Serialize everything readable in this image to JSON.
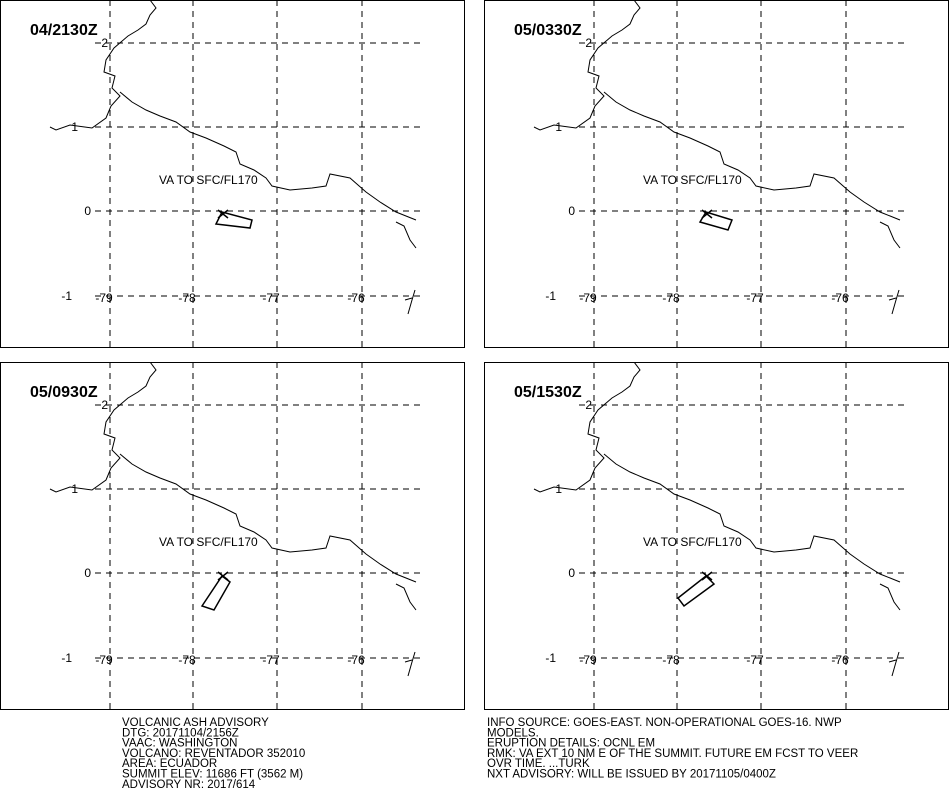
{
  "panels": [
    {
      "title": "04/2130Z",
      "va_label": "VA TO SFC/FL170"
    },
    {
      "title": "05/0330Z",
      "va_label": "VA TO SFC/FL170"
    },
    {
      "title": "05/0930Z",
      "va_label": "VA TO SFC/FL170"
    },
    {
      "title": "05/1530Z",
      "va_label": "VA TO SFC/FL170"
    }
  ],
  "grid": {
    "lat_labels": [
      2,
      1,
      0,
      -1
    ],
    "lon_labels": [
      -79,
      -78,
      -77,
      -76
    ]
  },
  "advisory": {
    "left": [
      "VOLCANIC ASH ADVISORY",
      "DTG: 20171104/2156Z",
      "VAAC: WASHINGTON",
      "VOLCANO: REVENTADOR 352010",
      "AREA: ECUADOR",
      "SUMMIT ELEV: 11686 FT (3562 M)",
      "ADVISORY NR: 2017/614"
    ],
    "right": [
      "INFO SOURCE: GOES-EAST. NON-OPERATIONAL GOES-16. NWP",
      "MODELS.",
      "ERUPTION DETAILS: OCNL EM",
      "RMK: VA EXT 10 NM E OF THE SUMMIT. FUTURE EM FCST TO VEER",
      "OVR TIME. ...TURK",
      "NXT ADVISORY: WILL BE ISSUED BY 20171105/0400Z"
    ]
  }
}
